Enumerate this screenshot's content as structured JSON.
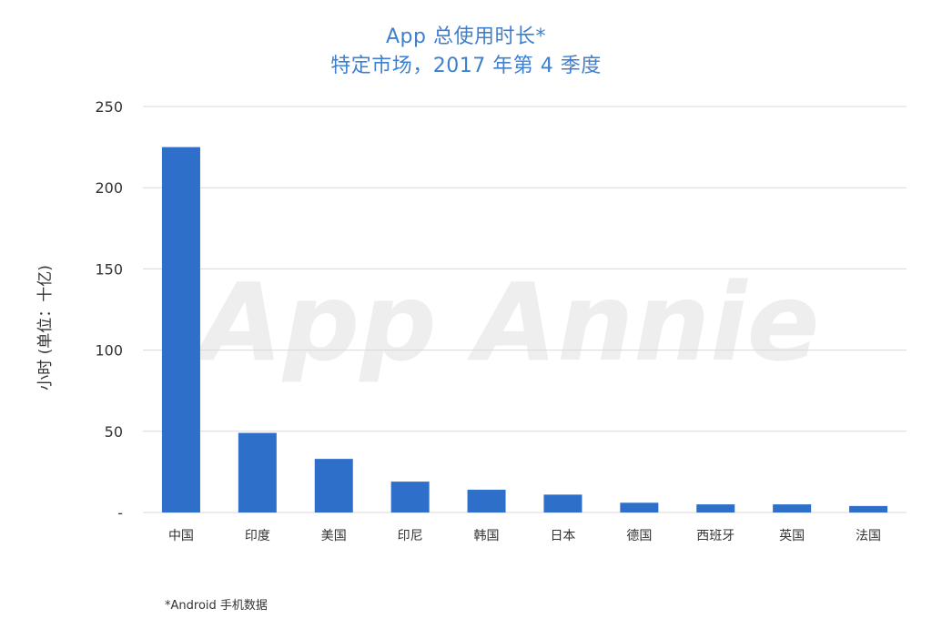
{
  "title": {
    "line1": "App 总使用时长*",
    "line2": "特定市场，2017 年第 4 季度"
  },
  "footnote": "*Android 手机数据",
  "watermark": "App Annie",
  "colors": {
    "bar": "#2e6fc9",
    "title": "#3f7fcf",
    "grid": "#d9d9d9",
    "axis_text": "#333333",
    "watermark": "#eeeeee"
  },
  "chart_data": {
    "type": "bar",
    "categories": [
      "中国",
      "印度",
      "美国",
      "印尼",
      "韩国",
      "日本",
      "德国",
      "西班牙",
      "英国",
      "法国"
    ],
    "values": [
      225,
      49,
      33,
      19,
      14,
      11,
      6,
      5,
      5,
      4
    ],
    "ylabel": "小时 (单位：十亿)",
    "ylim": [
      0,
      250
    ],
    "yticks": [
      0,
      50,
      100,
      150,
      200,
      250
    ],
    "ytick_labels": [
      "-",
      "50",
      "100",
      "150",
      "200",
      "250"
    ],
    "grid": true,
    "legend": "none"
  }
}
